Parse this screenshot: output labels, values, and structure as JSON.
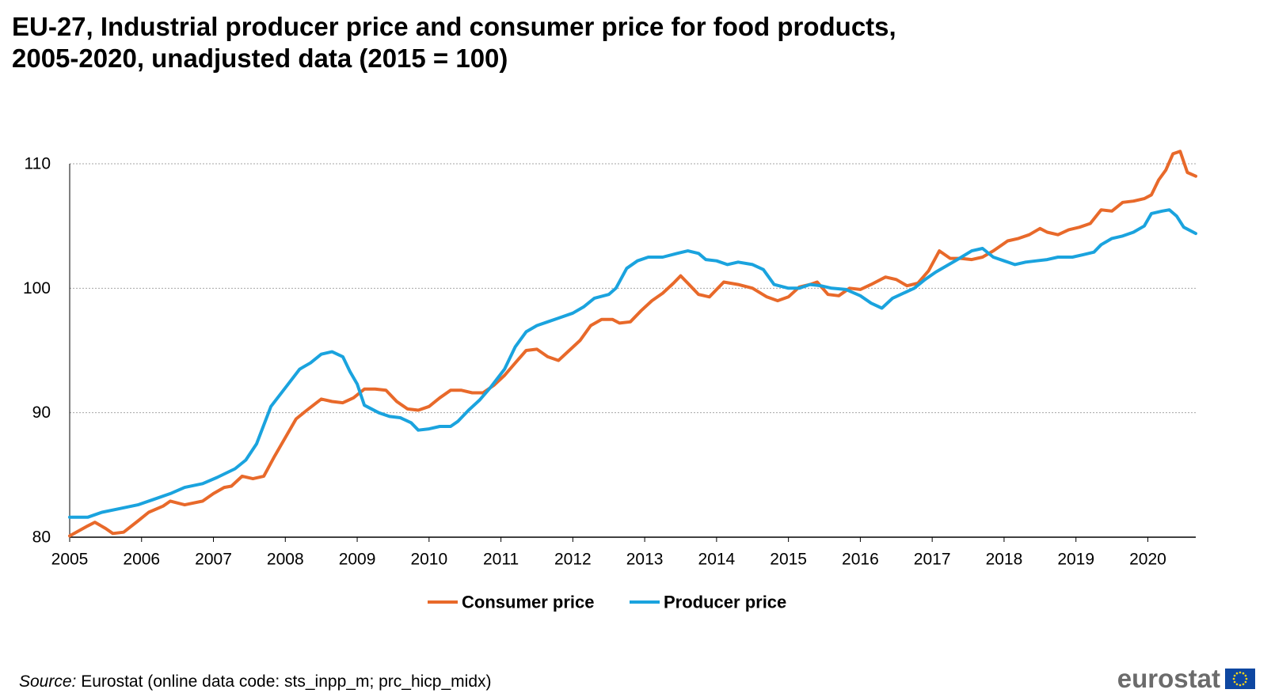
{
  "title": {
    "line1": "EU-27, Industrial producer price and consumer price for food products,",
    "line2": "2005-2020, unadjusted data (2015 = 100)"
  },
  "source": {
    "label": "Source:",
    "text": "Eurostat (online data code: sts_inpp_m; prc_hicp_midx)"
  },
  "logo": {
    "text": "eurostat"
  },
  "colors": {
    "consumer": "#E8692A",
    "producer": "#1AA3DE",
    "grid": "#A6A6A6",
    "axis": "#000000",
    "logo_flag": "#0E47A1",
    "logo_stars": "#FFD617"
  },
  "chart_data": {
    "type": "line",
    "title": "EU-27, Industrial producer price and consumer price for food products, 2005-2020, unadjusted data (2015 = 100)",
    "xlabel": "",
    "ylabel": "",
    "xlim": [
      2005.0,
      2020.667
    ],
    "ylim": [
      80,
      110
    ],
    "yticks": [
      80,
      90,
      100,
      110
    ],
    "x_ticks": [
      "2005",
      "2006",
      "2007",
      "2008",
      "2009",
      "2010",
      "2011",
      "2012",
      "2013",
      "2014",
      "2015",
      "2016",
      "2017",
      "2018",
      "2019",
      "2020"
    ],
    "grid": true,
    "legend_position": "bottom-center",
    "series": [
      {
        "name": "Consumer price",
        "color": "#E8692A",
        "points": [
          [
            2005.0,
            80.1
          ],
          [
            2005.25,
            80.9
          ],
          [
            2005.35,
            81.2
          ],
          [
            2005.5,
            80.7
          ],
          [
            2005.6,
            80.3
          ],
          [
            2005.75,
            80.4
          ],
          [
            2005.95,
            81.3
          ],
          [
            2006.1,
            82.0
          ],
          [
            2006.3,
            82.5
          ],
          [
            2006.4,
            82.9
          ],
          [
            2006.6,
            82.6
          ],
          [
            2006.85,
            82.9
          ],
          [
            2007.0,
            83.5
          ],
          [
            2007.15,
            84.0
          ],
          [
            2007.25,
            84.1
          ],
          [
            2007.4,
            84.9
          ],
          [
            2007.55,
            84.7
          ],
          [
            2007.7,
            84.9
          ],
          [
            2007.85,
            86.5
          ],
          [
            2008.0,
            88.0
          ],
          [
            2008.15,
            89.5
          ],
          [
            2008.3,
            90.2
          ],
          [
            2008.5,
            91.1
          ],
          [
            2008.65,
            90.9
          ],
          [
            2008.8,
            90.8
          ],
          [
            2008.95,
            91.2
          ],
          [
            2009.1,
            91.9
          ],
          [
            2009.25,
            91.9
          ],
          [
            2009.4,
            91.8
          ],
          [
            2009.55,
            90.9
          ],
          [
            2009.7,
            90.3
          ],
          [
            2009.85,
            90.2
          ],
          [
            2010.0,
            90.5
          ],
          [
            2010.15,
            91.2
          ],
          [
            2010.3,
            91.8
          ],
          [
            2010.45,
            91.8
          ],
          [
            2010.6,
            91.6
          ],
          [
            2010.75,
            91.6
          ],
          [
            2010.9,
            92.2
          ],
          [
            2011.05,
            93.0
          ],
          [
            2011.2,
            94.0
          ],
          [
            2011.35,
            95.0
          ],
          [
            2011.5,
            95.1
          ],
          [
            2011.65,
            94.5
          ],
          [
            2011.8,
            94.2
          ],
          [
            2011.95,
            95.0
          ],
          [
            2012.1,
            95.8
          ],
          [
            2012.25,
            97.0
          ],
          [
            2012.4,
            97.5
          ],
          [
            2012.55,
            97.5
          ],
          [
            2012.65,
            97.2
          ],
          [
            2012.8,
            97.3
          ],
          [
            2012.95,
            98.2
          ],
          [
            2013.1,
            99.0
          ],
          [
            2013.25,
            99.6
          ],
          [
            2013.4,
            100.4
          ],
          [
            2013.5,
            101.0
          ],
          [
            2013.6,
            100.4
          ],
          [
            2013.75,
            99.5
          ],
          [
            2013.9,
            99.3
          ],
          [
            2014.1,
            100.5
          ],
          [
            2014.3,
            100.3
          ],
          [
            2014.5,
            100.0
          ],
          [
            2014.7,
            99.3
          ],
          [
            2014.85,
            99.0
          ],
          [
            2015.0,
            99.3
          ],
          [
            2015.15,
            100.1
          ],
          [
            2015.3,
            100.3
          ],
          [
            2015.4,
            100.5
          ],
          [
            2015.55,
            99.5
          ],
          [
            2015.7,
            99.4
          ],
          [
            2015.85,
            100.0
          ],
          [
            2016.0,
            99.9
          ],
          [
            2016.15,
            100.3
          ],
          [
            2016.35,
            100.9
          ],
          [
            2016.5,
            100.7
          ],
          [
            2016.65,
            100.2
          ],
          [
            2016.8,
            100.4
          ],
          [
            2016.95,
            101.4
          ],
          [
            2017.1,
            103.0
          ],
          [
            2017.25,
            102.4
          ],
          [
            2017.4,
            102.4
          ],
          [
            2017.55,
            102.3
          ],
          [
            2017.7,
            102.5
          ],
          [
            2017.85,
            103.0
          ],
          [
            2018.05,
            103.8
          ],
          [
            2018.2,
            104.0
          ],
          [
            2018.35,
            104.3
          ],
          [
            2018.5,
            104.8
          ],
          [
            2018.6,
            104.5
          ],
          [
            2018.75,
            104.3
          ],
          [
            2018.9,
            104.7
          ],
          [
            2019.05,
            104.9
          ],
          [
            2019.2,
            105.2
          ],
          [
            2019.35,
            106.3
          ],
          [
            2019.5,
            106.2
          ],
          [
            2019.65,
            106.9
          ],
          [
            2019.8,
            107.0
          ],
          [
            2019.95,
            107.2
          ],
          [
            2020.05,
            107.5
          ],
          [
            2020.15,
            108.7
          ],
          [
            2020.25,
            109.5
          ],
          [
            2020.35,
            110.8
          ],
          [
            2020.45,
            111.0
          ],
          [
            2020.55,
            109.3
          ],
          [
            2020.667,
            109.0
          ]
        ]
      },
      {
        "name": "Producer price",
        "color": "#1AA3DE",
        "points": [
          [
            2005.0,
            81.6
          ],
          [
            2005.25,
            81.6
          ],
          [
            2005.45,
            82.0
          ],
          [
            2005.7,
            82.3
          ],
          [
            2005.95,
            82.6
          ],
          [
            2006.15,
            83.0
          ],
          [
            2006.4,
            83.5
          ],
          [
            2006.6,
            84.0
          ],
          [
            2006.85,
            84.3
          ],
          [
            2007.05,
            84.8
          ],
          [
            2007.3,
            85.5
          ],
          [
            2007.45,
            86.2
          ],
          [
            2007.6,
            87.5
          ],
          [
            2007.8,
            90.5
          ],
          [
            2008.0,
            92.0
          ],
          [
            2008.2,
            93.5
          ],
          [
            2008.35,
            94.0
          ],
          [
            2008.5,
            94.7
          ],
          [
            2008.65,
            94.9
          ],
          [
            2008.8,
            94.5
          ],
          [
            2008.9,
            93.3
          ],
          [
            2009.0,
            92.3
          ],
          [
            2009.1,
            90.6
          ],
          [
            2009.3,
            90.0
          ],
          [
            2009.45,
            89.7
          ],
          [
            2009.6,
            89.6
          ],
          [
            2009.75,
            89.2
          ],
          [
            2009.85,
            88.6
          ],
          [
            2010.0,
            88.7
          ],
          [
            2010.15,
            88.9
          ],
          [
            2010.3,
            88.9
          ],
          [
            2010.4,
            89.3
          ],
          [
            2010.55,
            90.2
          ],
          [
            2010.7,
            91.0
          ],
          [
            2010.85,
            92.0
          ],
          [
            2011.05,
            93.5
          ],
          [
            2011.2,
            95.3
          ],
          [
            2011.35,
            96.5
          ],
          [
            2011.5,
            97.0
          ],
          [
            2011.65,
            97.3
          ],
          [
            2011.8,
            97.6
          ],
          [
            2012.0,
            98.0
          ],
          [
            2012.15,
            98.5
          ],
          [
            2012.3,
            99.2
          ],
          [
            2012.5,
            99.5
          ],
          [
            2012.6,
            100.0
          ],
          [
            2012.75,
            101.6
          ],
          [
            2012.9,
            102.2
          ],
          [
            2013.05,
            102.5
          ],
          [
            2013.25,
            102.5
          ],
          [
            2013.45,
            102.8
          ],
          [
            2013.6,
            103.0
          ],
          [
            2013.75,
            102.8
          ],
          [
            2013.85,
            102.3
          ],
          [
            2014.0,
            102.2
          ],
          [
            2014.15,
            101.9
          ],
          [
            2014.3,
            102.1
          ],
          [
            2014.5,
            101.9
          ],
          [
            2014.65,
            101.5
          ],
          [
            2014.8,
            100.3
          ],
          [
            2015.0,
            100.0
          ],
          [
            2015.15,
            100.0
          ],
          [
            2015.3,
            100.3
          ],
          [
            2015.45,
            100.2
          ],
          [
            2015.6,
            100.0
          ],
          [
            2015.8,
            99.9
          ],
          [
            2016.0,
            99.4
          ],
          [
            2016.15,
            98.8
          ],
          [
            2016.3,
            98.4
          ],
          [
            2016.45,
            99.2
          ],
          [
            2016.6,
            99.6
          ],
          [
            2016.75,
            100.0
          ],
          [
            2016.9,
            100.7
          ],
          [
            2017.05,
            101.3
          ],
          [
            2017.2,
            101.8
          ],
          [
            2017.35,
            102.3
          ],
          [
            2017.55,
            103.0
          ],
          [
            2017.7,
            103.2
          ],
          [
            2017.85,
            102.5
          ],
          [
            2018.0,
            102.2
          ],
          [
            2018.15,
            101.9
          ],
          [
            2018.3,
            102.1
          ],
          [
            2018.45,
            102.2
          ],
          [
            2018.6,
            102.3
          ],
          [
            2018.75,
            102.5
          ],
          [
            2018.95,
            102.5
          ],
          [
            2019.1,
            102.7
          ],
          [
            2019.25,
            102.9
          ],
          [
            2019.35,
            103.5
          ],
          [
            2019.5,
            104.0
          ],
          [
            2019.65,
            104.2
          ],
          [
            2019.8,
            104.5
          ],
          [
            2019.95,
            105.0
          ],
          [
            2020.05,
            106.0
          ],
          [
            2020.2,
            106.2
          ],
          [
            2020.3,
            106.3
          ],
          [
            2020.4,
            105.8
          ],
          [
            2020.5,
            104.9
          ],
          [
            2020.667,
            104.4
          ]
        ]
      }
    ]
  }
}
